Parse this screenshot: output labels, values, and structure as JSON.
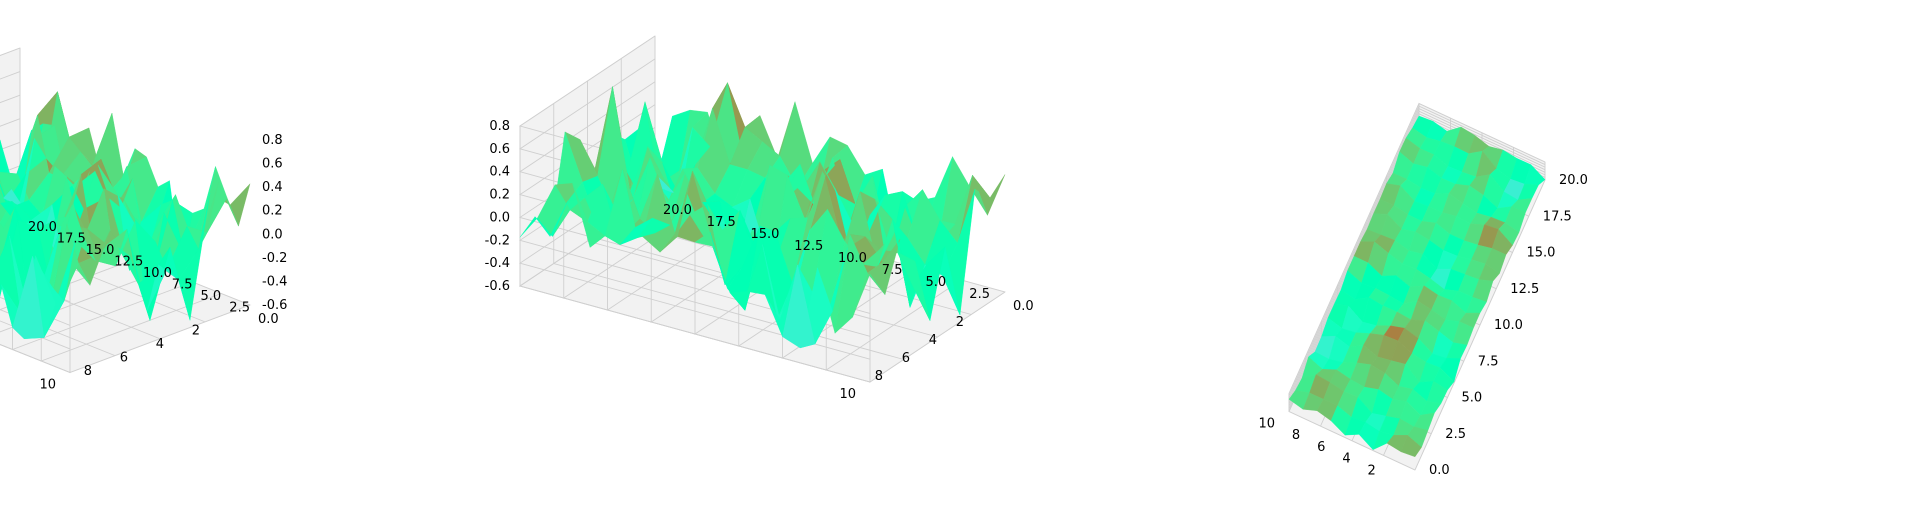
{
  "figure": {
    "panel_count": 3
  },
  "chart_data": [
    {
      "type": "surface3d",
      "title": "",
      "colormap": "rainbow",
      "rows": 10,
      "cols": 21,
      "x_range": [
        1,
        10
      ],
      "y_range": [
        0,
        20
      ],
      "z_range": [
        -0.6,
        0.9
      ],
      "x_ticks": [
        "2",
        "4",
        "6",
        "8",
        "10"
      ],
      "y_ticks": [
        "0.0",
        "2.5",
        "5.0",
        "7.5",
        "10.0",
        "12.5",
        "15.0",
        "17.5",
        "20.0"
      ],
      "z_ticks": [
        "-0.6",
        "-0.4",
        "-0.2",
        "0.0",
        "0.2",
        "0.4",
        "0.6",
        "0.8"
      ],
      "view": "elev 20, azim -35"
    },
    {
      "type": "surface3d",
      "title": "",
      "colormap": "rainbow",
      "rows": 10,
      "cols": 21,
      "x_range": [
        1,
        10
      ],
      "y_range": [
        0,
        20
      ],
      "z_range": [
        -0.6,
        0.9
      ],
      "x_ticks": [
        "2",
        "4",
        "6",
        "8",
        "10"
      ],
      "y_ticks": [
        "0.0",
        "2.5",
        "5.0",
        "7.5",
        "10.0",
        "12.5",
        "15.0",
        "17.5",
        "20.0"
      ],
      "z_ticks": [
        "-0.6",
        "-0.4",
        "-0.2",
        "0.0",
        "0.2",
        "0.4",
        "0.6",
        "0.8"
      ],
      "view": "elev 20, azim 55"
    },
    {
      "type": "surface3d",
      "title": "",
      "colormap": "rainbow",
      "rows": 10,
      "cols": 21,
      "x_range": [
        1,
        10
      ],
      "y_range": [
        0,
        20
      ],
      "z_range": [
        -0.6,
        0.9
      ],
      "x_ticks": [
        "2",
        "4",
        "6",
        "8",
        "10"
      ],
      "y_ticks": [
        "0.0",
        "2.5",
        "5.0",
        "7.5",
        "10.0",
        "12.5",
        "15.0",
        "17.5",
        "20.0"
      ],
      "z_ticks": [],
      "view": "elev 80, azim 110 (near top-down)"
    }
  ]
}
